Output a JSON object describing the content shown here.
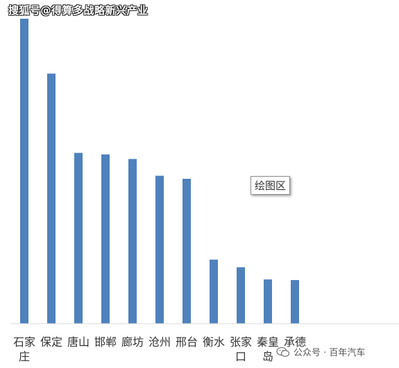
{
  "header": {
    "watermark": "搜狐号@得算多战略新兴产业"
  },
  "tooltip": {
    "label": "绘图区"
  },
  "footer": {
    "watermark": "公众号 · 百年汽车",
    "icon": "wechat-icon"
  },
  "colors": {
    "bar": "#4f81bd",
    "axis": "#d9d9d9",
    "label": "#333333"
  },
  "chart_data": {
    "type": "bar",
    "title": "",
    "xlabel": "",
    "ylabel": "",
    "grid": false,
    "ylim": [
      0,
      100
    ],
    "categories": [
      "石家庄",
      "保定",
      "唐山",
      "邯郸",
      "廊坊",
      "沧州",
      "邢台",
      "衡水",
      "张家口",
      "秦皇岛",
      "承德"
    ],
    "category_label_lines": [
      [
        "石家",
        "庄"
      ],
      [
        "保定"
      ],
      [
        "唐山"
      ],
      [
        "邯郸"
      ],
      [
        "廊坊"
      ],
      [
        "沧州"
      ],
      [
        "邢台"
      ],
      [
        "衡水"
      ],
      [
        "张家",
        "口"
      ],
      [
        "秦皇",
        "岛"
      ],
      [
        "承德"
      ]
    ],
    "values": [
      100,
      82,
      56,
      55.5,
      54,
      48.5,
      47.5,
      21,
      18.5,
      14.5,
      14.3
    ]
  }
}
